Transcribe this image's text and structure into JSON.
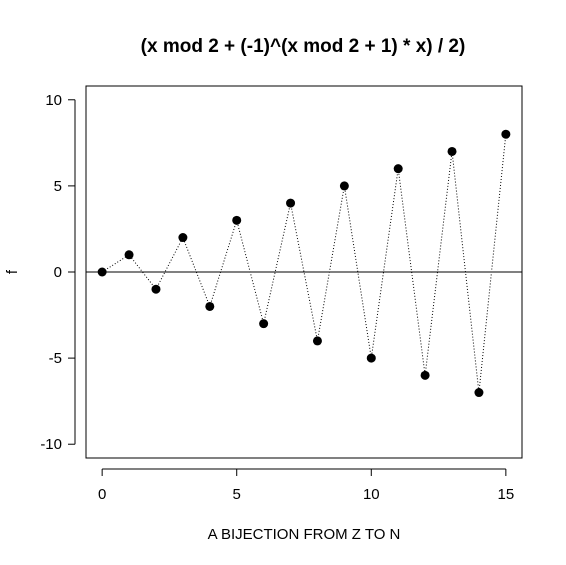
{
  "chart_data": {
    "type": "scatter",
    "title": "(x mod 2 + (-1)^(x mod 2 + 1) * x) / 2)",
    "xlabel": "A BIJECTION FROM Z TO N",
    "ylabel": "f",
    "xlim": [
      -0.6,
      15.6
    ],
    "ylim": [
      -10.8,
      10.8
    ],
    "x_ticks": [
      0,
      5,
      10,
      15
    ],
    "y_ticks": [
      -10,
      -5,
      0,
      5,
      10
    ],
    "grid": false,
    "legend": "none",
    "reference_line_y": 0,
    "connect_points": "dotted",
    "series": [
      {
        "x": [
          0,
          1,
          2,
          3,
          4,
          5,
          6,
          7,
          8,
          9,
          10,
          11,
          12,
          13,
          14,
          15
        ],
        "y": [
          0,
          1,
          -1,
          2,
          -2,
          3,
          -3,
          4,
          -4,
          5,
          -5,
          6,
          -6,
          7,
          -7,
          8
        ]
      }
    ],
    "colors": {
      "points": "#000000",
      "line": "#000000",
      "frame": "#000000"
    }
  }
}
